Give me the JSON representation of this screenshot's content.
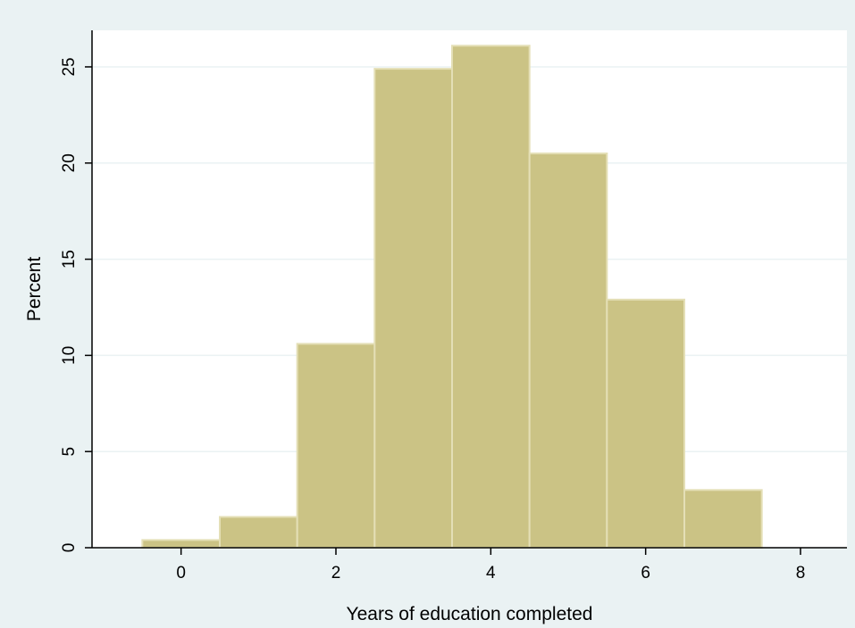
{
  "colors": {
    "background": "#eaf2f3",
    "plot_background": "#ffffff",
    "bar_fill": "#cbc385",
    "bar_stroke": "#e4dfb6",
    "grid": "#eaf2f3",
    "axis": "#000000"
  },
  "chart_data": {
    "type": "bar",
    "subtype": "histogram",
    "title": "",
    "xlabel": "Years of education completed",
    "ylabel": "Percent",
    "bin_width": 1,
    "bins": [
      {
        "center": 0,
        "value": 0.4
      },
      {
        "center": 1,
        "value": 1.6
      },
      {
        "center": 2,
        "value": 10.6
      },
      {
        "center": 3,
        "value": 24.9
      },
      {
        "center": 4,
        "value": 26.1
      },
      {
        "center": 5,
        "value": 20.5
      },
      {
        "center": 6,
        "value": 12.9
      },
      {
        "center": 7,
        "value": 3.0
      }
    ],
    "xlim": [
      -1.15,
      8.6
    ],
    "ylim": [
      0,
      26.9
    ],
    "xticks": [
      0,
      2,
      4,
      6,
      8
    ],
    "yticks": [
      0,
      5,
      10,
      15,
      20,
      25
    ],
    "xtick_labels": [
      "0",
      "2",
      "4",
      "6",
      "8"
    ],
    "ytick_labels": [
      "0",
      "5",
      "10",
      "15",
      "20",
      "25"
    ],
    "grid": true,
    "legend": "none"
  }
}
